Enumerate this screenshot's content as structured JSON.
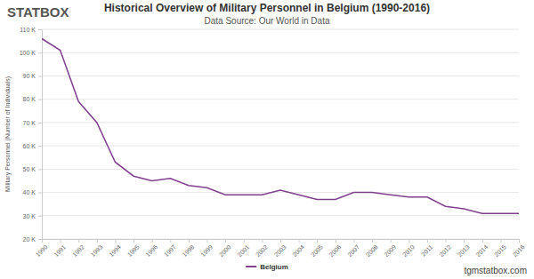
{
  "chart_data": {
    "type": "line",
    "title": "Historical Overview of Military Personnel in Belgium (1990-2016)",
    "subtitle": "Data Source: Our World in Data",
    "y_label": "Military Personnel (Number of Individuals)",
    "annotations": [
      "STATBOX",
      "tgmstatbox.com"
    ],
    "x": [
      1990,
      1991,
      1992,
      1993,
      1994,
      1995,
      1996,
      1997,
      1998,
      1999,
      2000,
      2001,
      2002,
      2003,
      2004,
      2005,
      2006,
      2007,
      2008,
      2009,
      2010,
      2011,
      2012,
      2013,
      2014,
      2015,
      2016
    ],
    "series": [
      {
        "name": "Belgium",
        "color": "#80408f",
        "values": [
          106000,
          101000,
          79000,
          70000,
          53000,
          47000,
          45000,
          46000,
          43000,
          42000,
          39000,
          39000,
          39000,
          41000,
          39000,
          37000,
          37000,
          40000,
          40000,
          39000,
          38000,
          38000,
          34000,
          33000,
          31000,
          31000,
          31000
        ]
      }
    ],
    "xlim": [
      1990,
      2016
    ],
    "xticks": [
      1990,
      1991,
      1992,
      1993,
      1994,
      1995,
      1996,
      1997,
      1998,
      1999,
      2000,
      2001,
      2002,
      2003,
      2004,
      2005,
      2006,
      2007,
      2008,
      2009,
      2010,
      2011,
      2012,
      2013,
      2014,
      2015,
      2016
    ],
    "ylim": [
      20000,
      110000
    ],
    "yticks": [
      {
        "value": 20000,
        "label": "20 K"
      },
      {
        "value": 30000,
        "label": "30 K"
      },
      {
        "value": 40000,
        "label": "40 K"
      },
      {
        "value": 50000,
        "label": "50 K"
      },
      {
        "value": 60000,
        "label": "60 K"
      },
      {
        "value": 70000,
        "label": "70 K"
      },
      {
        "value": 80000,
        "label": "80 K"
      },
      {
        "value": 90000,
        "label": "90 K"
      },
      {
        "value": 100000,
        "label": "100 K"
      },
      {
        "value": 110000,
        "label": "110 K"
      }
    ],
    "grid": true,
    "legend": "bottom"
  }
}
